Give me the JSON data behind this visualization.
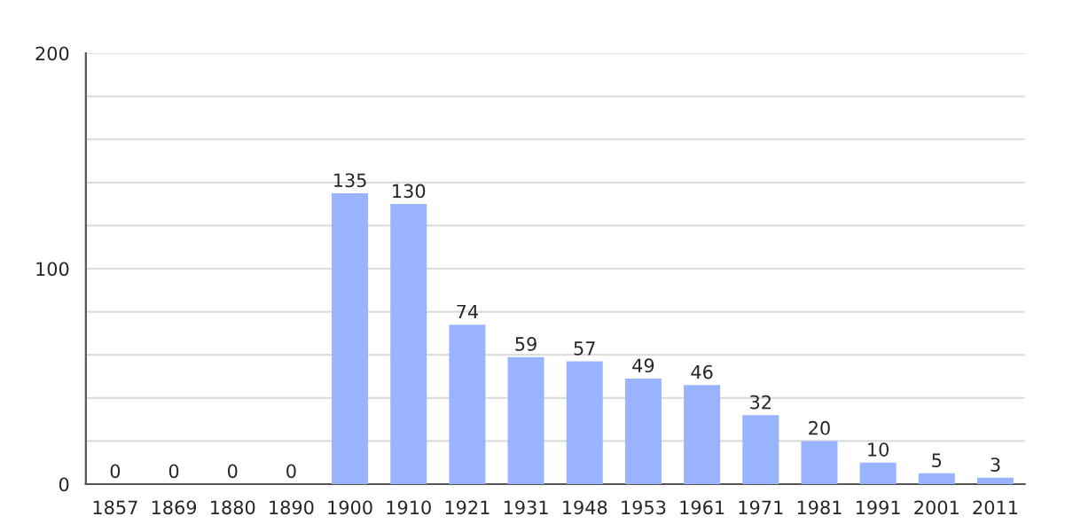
{
  "chart_data": {
    "type": "bar",
    "categories": [
      "1857",
      "1869",
      "1880",
      "1890",
      "1900",
      "1910",
      "1921",
      "1931",
      "1948",
      "1953",
      "1961",
      "1971",
      "1981",
      "1991",
      "2001",
      "2011"
    ],
    "values": [
      0,
      0,
      0,
      0,
      135,
      130,
      74,
      59,
      57,
      49,
      46,
      32,
      20,
      10,
      5,
      3
    ],
    "color": "#99b3ff",
    "ylim": [
      0,
      200
    ],
    "yticks": [
      0,
      {
        "value": 20,
        "label": null
      },
      {
        "value": 40,
        "label": null
      },
      {
        "value": 60,
        "label": null
      },
      {
        "value": 80,
        "label": null
      },
      100,
      {
        "value": 120,
        "label": null
      },
      {
        "value": 140,
        "label": null
      },
      {
        "value": 160,
        "label": null
      },
      {
        "value": 180,
        "label": null
      },
      200
    ],
    "grid": "y",
    "data_labels": true
  }
}
